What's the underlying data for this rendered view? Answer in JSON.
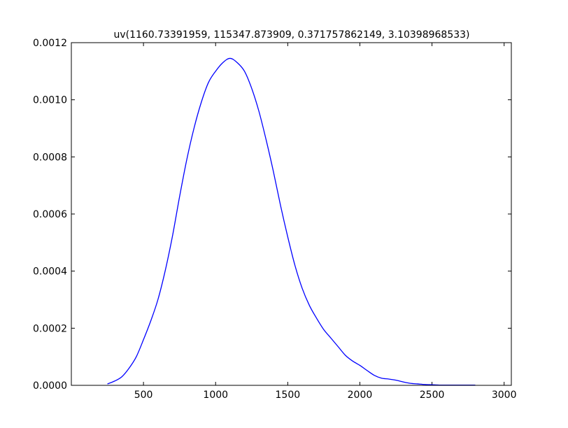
{
  "chart_data": {
    "type": "line",
    "title": "uv(1160.73391959, 115347.873909, 0.371757862149, 3.10398968533)",
    "xlabel": "",
    "ylabel": "",
    "xlim": [
      0,
      3050
    ],
    "ylim": [
      0,
      0.0012
    ],
    "x_ticks": [
      500,
      1000,
      1500,
      2000,
      2500,
      3000
    ],
    "x_tick_labels": [
      "500",
      "1000",
      "1500",
      "2000",
      "2500",
      "3000"
    ],
    "y_ticks": [
      0,
      0.0002,
      0.0004,
      0.0006,
      0.0008,
      0.001,
      0.0012
    ],
    "y_tick_labels": [
      "0.0000",
      "0.0002",
      "0.0004",
      "0.0006",
      "0.0008",
      "0.0010",
      "0.0012"
    ],
    "grid": false,
    "series": [
      {
        "color": "#0000ff",
        "x": [
          250,
          300,
          350,
          400,
          450,
          500,
          550,
          600,
          650,
          700,
          750,
          800,
          850,
          900,
          950,
          1000,
          1050,
          1100,
          1150,
          1200,
          1250,
          1300,
          1350,
          1400,
          1450,
          1500,
          1550,
          1600,
          1650,
          1700,
          1750,
          1800,
          1850,
          1900,
          1950,
          2000,
          2050,
          2100,
          2150,
          2200,
          2250,
          2300,
          2350,
          2400,
          2450,
          2500,
          2550,
          2600,
          2650,
          2700,
          2750,
          2800
        ],
        "y": [
          5e-06,
          1.5e-05,
          3e-05,
          6e-05,
          0.0001,
          0.00016,
          0.000225,
          0.0003,
          0.0004,
          0.00052,
          0.00066,
          0.00079,
          0.0009,
          0.00099,
          0.00106,
          0.0011,
          0.00113,
          0.001145,
          0.00113,
          0.0011,
          0.00104,
          0.00096,
          0.00086,
          0.00075,
          0.00063,
          0.00052,
          0.00042,
          0.00034,
          0.00028,
          0.000235,
          0.000195,
          0.000165,
          0.000135,
          0.000105,
          8.5e-05,
          7e-05,
          5.2e-05,
          3.5e-05,
          2.5e-05,
          2.2e-05,
          1.8e-05,
          1.2e-05,
          7e-06,
          5e-06,
          3e-06,
          2e-06,
          1e-06,
          1e-06,
          1e-06,
          1e-06,
          1e-06,
          1e-06
        ]
      }
    ]
  }
}
